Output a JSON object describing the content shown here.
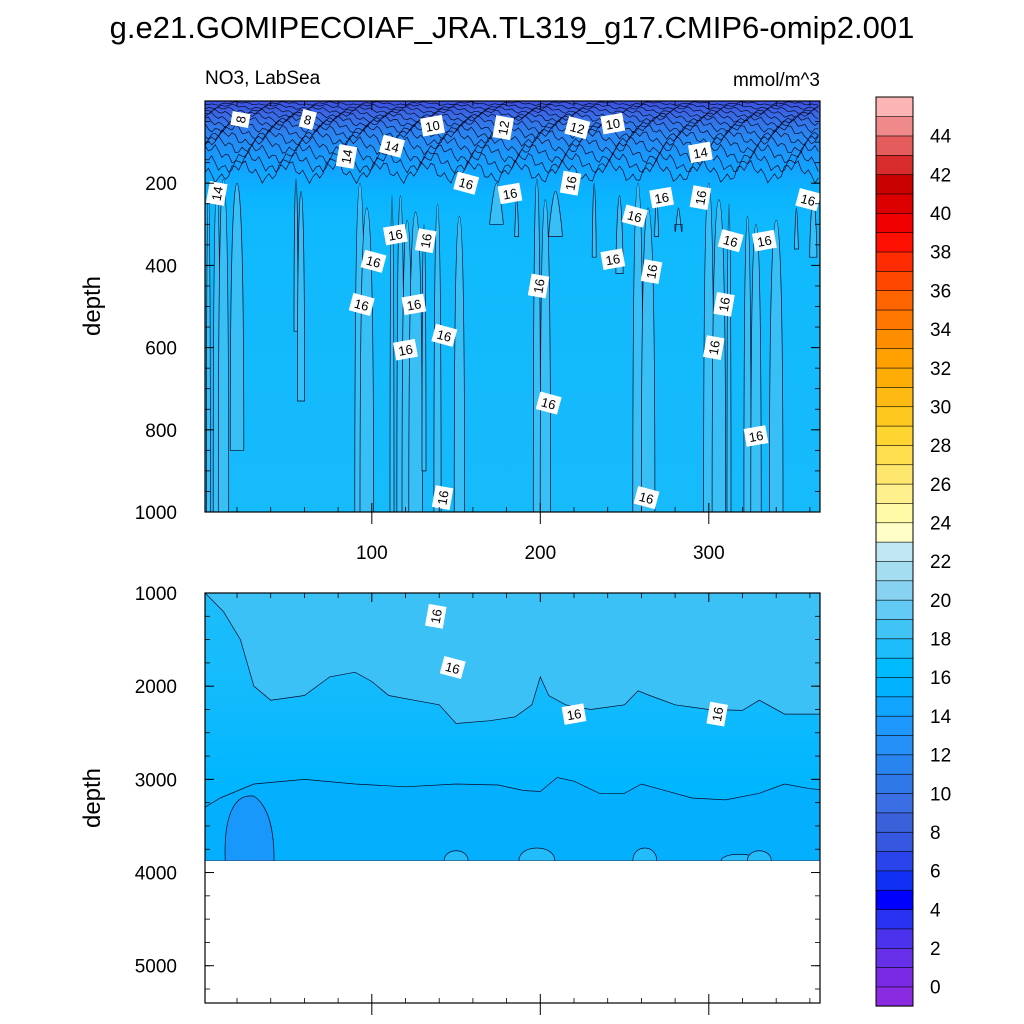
{
  "figure": {
    "title": "g.e21.GOMIPECOIAF_JRA.TL319_g17.CMIP6-omip2.001",
    "left_string": "NO3, LabSea",
    "right_string": "mmol/m^3"
  },
  "chart_data": [
    {
      "type": "heatmap",
      "panel": "upper",
      "ylabel": "depth",
      "xlim": [
        1,
        366
      ],
      "ylim": [
        0,
        1000
      ],
      "y_reversed": true,
      "x_ticks": [
        100,
        200,
        300
      ],
      "y_ticks": [
        200,
        400,
        600,
        800,
        1000
      ],
      "contour_levels": [
        0,
        1,
        2,
        3,
        4,
        5,
        6,
        7,
        8,
        9,
        10,
        11,
        12,
        13,
        14,
        15,
        16,
        17,
        18,
        19,
        20,
        21,
        22,
        23,
        24,
        25,
        26,
        27,
        28,
        29,
        30,
        31,
        32,
        33,
        34,
        35,
        36,
        37,
        38,
        39,
        40,
        41,
        42,
        43,
        44,
        45
      ],
      "approx_profile": [
        {
          "depth": 0,
          "value": 7
        },
        {
          "depth": 50,
          "value": 10
        },
        {
          "depth": 100,
          "value": 13
        },
        {
          "depth": 150,
          "value": 14.5
        },
        {
          "depth": 200,
          "value": 15
        },
        {
          "depth": 1000,
          "value": 15.8
        }
      ],
      "line_labels": [
        {
          "x": 22,
          "depth": 45,
          "text": "8"
        },
        {
          "x": 62,
          "depth": 45,
          "text": "8"
        },
        {
          "x": 136,
          "depth": 60,
          "text": "10"
        },
        {
          "x": 178,
          "depth": 65,
          "text": "12"
        },
        {
          "x": 222,
          "depth": 65,
          "text": "12"
        },
        {
          "x": 243,
          "depth": 55,
          "text": "10"
        },
        {
          "x": 85,
          "depth": 135,
          "text": "14"
        },
        {
          "x": 112,
          "depth": 110,
          "text": "14"
        },
        {
          "x": 295,
          "depth": 125,
          "text": "14"
        },
        {
          "x": 8,
          "depth": 225,
          "text": "14"
        },
        {
          "x": 156,
          "depth": 200,
          "text": "16"
        },
        {
          "x": 182,
          "depth": 225,
          "text": "16"
        },
        {
          "x": 218,
          "depth": 200,
          "text": "16"
        },
        {
          "x": 256,
          "depth": 280,
          "text": "16"
        },
        {
          "x": 272,
          "depth": 235,
          "text": "16"
        },
        {
          "x": 295,
          "depth": 235,
          "text": "16"
        },
        {
          "x": 359,
          "depth": 240,
          "text": "16"
        },
        {
          "x": 114,
          "depth": 325,
          "text": "16"
        },
        {
          "x": 132,
          "depth": 340,
          "text": "16"
        },
        {
          "x": 101,
          "depth": 390,
          "text": "16"
        },
        {
          "x": 243,
          "depth": 385,
          "text": "16"
        },
        {
          "x": 266,
          "depth": 415,
          "text": "16"
        },
        {
          "x": 313,
          "depth": 340,
          "text": "16"
        },
        {
          "x": 333,
          "depth": 340,
          "text": "16"
        },
        {
          "x": 199,
          "depth": 450,
          "text": "16"
        },
        {
          "x": 94,
          "depth": 495,
          "text": "16"
        },
        {
          "x": 125,
          "depth": 495,
          "text": "16"
        },
        {
          "x": 309,
          "depth": 495,
          "text": "16"
        },
        {
          "x": 143,
          "depth": 570,
          "text": "16"
        },
        {
          "x": 120,
          "depth": 605,
          "text": "16"
        },
        {
          "x": 303,
          "depth": 600,
          "text": "16"
        },
        {
          "x": 205,
          "depth": 735,
          "text": "16"
        },
        {
          "x": 328,
          "depth": 815,
          "text": "16"
        },
        {
          "x": 142,
          "depth": 965,
          "text": "16"
        },
        {
          "x": 263,
          "depth": 965,
          "text": "16"
        }
      ]
    },
    {
      "type": "heatmap",
      "panel": "lower",
      "ylabel": "depth",
      "xlim": [
        1,
        366
      ],
      "ylim": [
        1000,
        5400
      ],
      "y_reversed": true,
      "y_ticks": [
        1000,
        2000,
        3000,
        4000,
        5000
      ],
      "data_bottom_depth": 3875,
      "approx_profile": [
        {
          "depth": 1000,
          "value": 16.2
        },
        {
          "depth": 2200,
          "value": 15.8
        },
        {
          "depth": 3000,
          "value": 15.2
        },
        {
          "depth": 3875,
          "value": 14.6
        }
      ],
      "line_labels": [
        {
          "x": 138,
          "depth": 1250,
          "text": "16"
        },
        {
          "x": 148,
          "depth": 1800,
          "text": "16"
        },
        {
          "x": 220,
          "depth": 2300,
          "text": "16"
        },
        {
          "x": 305,
          "depth": 2300,
          "text": "16"
        }
      ]
    }
  ],
  "colorbar": {
    "labels": [
      "0",
      "2",
      "4",
      "6",
      "8",
      "10",
      "12",
      "14",
      "16",
      "18",
      "20",
      "22",
      "24",
      "26",
      "28",
      "30",
      "32",
      "34",
      "36",
      "38",
      "40",
      "42",
      "44"
    ],
    "colors": [
      "#8a2be2",
      "#7a2ae4",
      "#6630e8",
      "#4b32ec",
      "#2a32f2",
      "#0000ff",
      "#1030f4",
      "#2a44ec",
      "#3658e0",
      "#3a60da",
      "#3a6ee2",
      "#2f78e8",
      "#2a84f0",
      "#2590f8",
      "#1e98fc",
      "#10a4ff",
      "#00b2ff",
      "#00bcff",
      "#1cbdfa",
      "#40c4f6",
      "#62caf4",
      "#86d2f0",
      "#a4dcf0",
      "#c0e6f4",
      "#fefec6",
      "#fefaa6",
      "#fef08c",
      "#fee76c",
      "#fede4c",
      "#fed430",
      "#fec81e",
      "#feba12",
      "#feac06",
      "#fea000",
      "#fe8e00",
      "#fe7800",
      "#fe6400",
      "#fe4800",
      "#fe2c00",
      "#fe1000",
      "#f00000",
      "#dc0000",
      "#c80000",
      "#d82c2c",
      "#e45c5c",
      "#f08a8a",
      "#fcb4b4"
    ]
  }
}
